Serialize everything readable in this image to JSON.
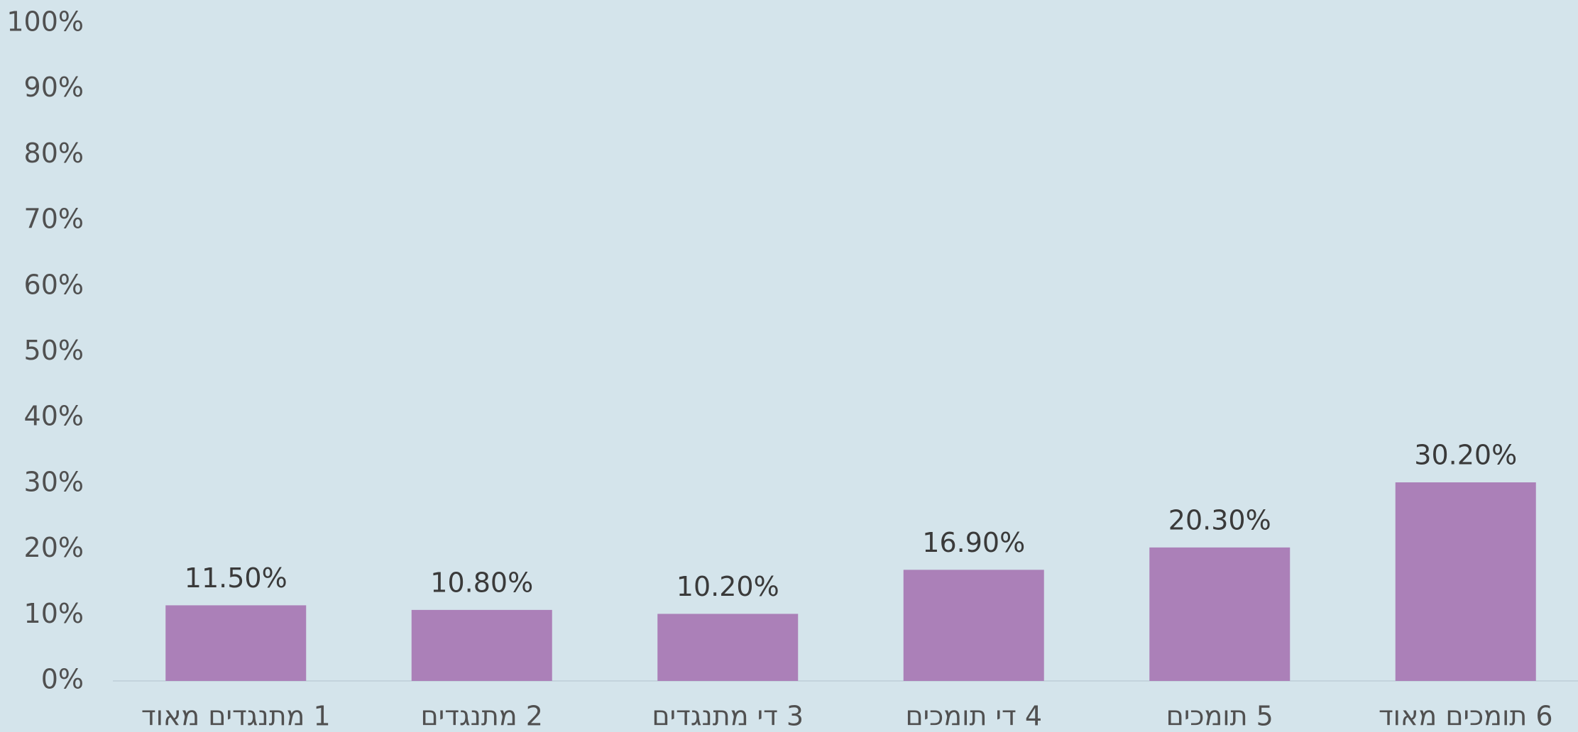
{
  "chart_data": {
    "type": "bar",
    "categories": [
      "1 מתנגדים מאוד",
      "2 מתנגדים",
      "3 די מתנגדים",
      "4 די תומכים",
      "5 תומכים",
      "6 תומכים מאוד"
    ],
    "values": [
      11.5,
      10.8,
      10.2,
      16.9,
      20.3,
      30.2
    ],
    "value_labels": [
      "11.50%",
      "10.80%",
      "10.20%",
      "16.90%",
      "20.30%",
      "30.20%"
    ],
    "color": "#ab80b8",
    "ylim": [
      0,
      100
    ],
    "yticks": [
      {
        "value": 0,
        "label": "0%"
      },
      {
        "value": 10,
        "label": "10%"
      },
      {
        "value": 20,
        "label": "20%"
      },
      {
        "value": 30,
        "label": "30%"
      },
      {
        "value": 40,
        "label": "40%"
      },
      {
        "value": 50,
        "label": "50%"
      },
      {
        "value": 60,
        "label": "60%"
      },
      {
        "value": 70,
        "label": "70%"
      },
      {
        "value": 80,
        "label": "80%"
      },
      {
        "value": 90,
        "label": "90%"
      },
      {
        "value": 100,
        "label": "100%"
      }
    ],
    "grid": false
  }
}
